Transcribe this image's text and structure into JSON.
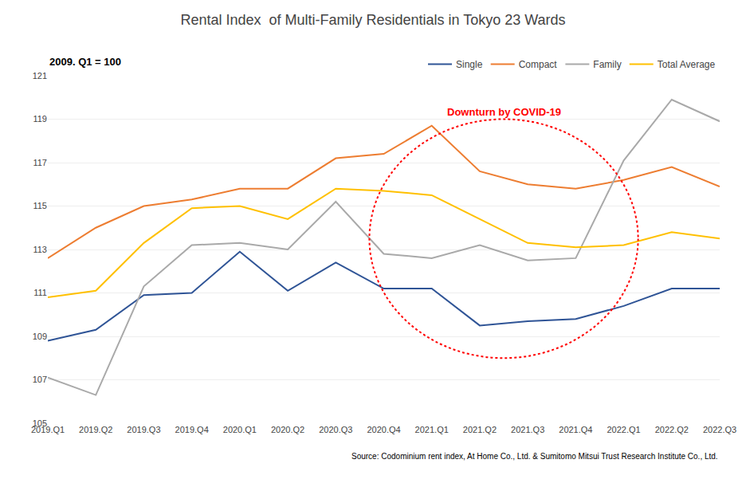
{
  "chart_data": {
    "type": "line",
    "title": "Rental Index  of Multi-Family Residentials in Tokyo 23 Wards",
    "subtitle": "2009. Q1 = 100",
    "source": "Source: Codominium rent index, At Home Co., Ltd. & Sumitomo Mitsui Trust Research Institute Co., Ltd.",
    "categories": [
      "2019.Q1",
      "2019.Q2",
      "2019.Q3",
      "2019.Q4",
      "2020.Q1",
      "2020.Q2",
      "2020.Q3",
      "2020.Q4",
      "2021.Q1",
      "2021.Q2",
      "2021.Q3",
      "2021.Q4",
      "2022.Q1",
      "2022.Q2",
      "2022.Q3"
    ],
    "series": [
      {
        "name": "Single",
        "color": "#2F5496",
        "values": [
          108.8,
          109.3,
          110.9,
          111.0,
          112.9,
          111.1,
          112.4,
          111.2,
          111.2,
          109.5,
          109.7,
          109.8,
          110.4,
          111.2,
          111.2
        ]
      },
      {
        "name": "Compact",
        "color": "#ED7D31",
        "values": [
          112.6,
          114.0,
          115.0,
          115.3,
          115.8,
          115.8,
          117.2,
          117.4,
          118.7,
          116.6,
          116.0,
          115.8,
          116.2,
          116.8,
          115.9
        ]
      },
      {
        "name": "Family",
        "color": "#A9A9A9",
        "values": [
          107.1,
          106.3,
          111.3,
          113.2,
          113.3,
          113.0,
          115.2,
          112.8,
          112.6,
          113.2,
          112.5,
          112.6,
          117.1,
          119.9,
          118.9
        ]
      },
      {
        "name": "Total Average",
        "color": "#FFC000",
        "values": [
          110.8,
          111.1,
          113.3,
          114.9,
          115.0,
          114.4,
          115.8,
          115.7,
          115.5,
          114.4,
          113.3,
          113.1,
          113.2,
          113.8,
          113.5
        ]
      }
    ],
    "ylim": [
      105,
      121
    ],
    "yticks": [
      105,
      107,
      109,
      111,
      113,
      115,
      117,
      119,
      121
    ],
    "grid": true,
    "legend": "top",
    "annotations": [
      {
        "text": "Downturn by COVID-19",
        "color": "red",
        "shape": "ellipse",
        "center_x": 9.5,
        "center_y": 113.5,
        "width": 5.6,
        "height": 11.0
      }
    ]
  }
}
